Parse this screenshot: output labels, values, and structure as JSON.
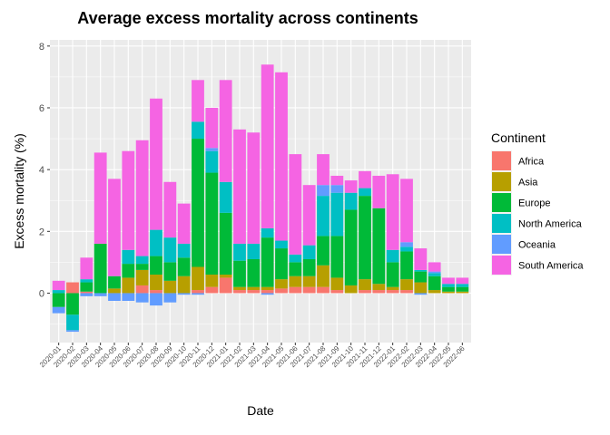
{
  "chart_data": {
    "type": "bar",
    "stacked": true,
    "title": "Average excess mortality across continents",
    "xlabel": "Date",
    "ylabel": "Excess mortality (%)",
    "ylim": [
      -1.6,
      8.2
    ],
    "yticks": [
      0,
      2,
      4,
      6,
      8
    ],
    "grid": true,
    "legend_title": "Continent",
    "legend_position": "right",
    "categories": [
      "2020-01",
      "2020-02",
      "2020-03",
      "2020-04",
      "2020-05",
      "2020-06",
      "2020-07",
      "2020-08",
      "2020-09",
      "2020-10",
      "2020-11",
      "2020-12",
      "2021-01",
      "2021-02",
      "2021-03",
      "2021-04",
      "2021-05",
      "2021-06",
      "2021-07",
      "2021-08",
      "2021-09",
      "2021-10",
      "2021-11",
      "2021-12",
      "2022-01",
      "2022-02",
      "2022-03",
      "2022-04",
      "2022-05",
      "2022-06"
    ],
    "series": [
      {
        "name": "Africa",
        "color": "#F8766D",
        "values": [
          0.0,
          0.35,
          0.05,
          0.0,
          0.0,
          0.0,
          0.25,
          0.1,
          0.0,
          0.0,
          0.1,
          0.2,
          0.5,
          0.1,
          0.1,
          0.1,
          0.15,
          0.2,
          0.2,
          0.2,
          0.1,
          0.0,
          0.1,
          0.1,
          0.1,
          0.1,
          0.0,
          0.0,
          0.0,
          0.0
        ]
      },
      {
        "name": "Asia",
        "color": "#B79F00",
        "values": [
          0.0,
          0.0,
          0.0,
          0.0,
          0.15,
          0.5,
          0.5,
          0.5,
          0.4,
          0.55,
          0.75,
          0.4,
          0.1,
          0.1,
          0.1,
          0.1,
          0.3,
          0.35,
          0.35,
          0.7,
          0.4,
          0.25,
          0.35,
          0.2,
          0.1,
          0.35,
          0.35,
          0.1,
          0.05,
          0.05
        ]
      },
      {
        "name": "Europe",
        "color": "#00BA38",
        "values": [
          -0.45,
          -0.7,
          0.3,
          1.6,
          0.4,
          0.45,
          0.2,
          0.6,
          0.6,
          0.6,
          4.15,
          3.3,
          2.0,
          0.85,
          0.9,
          1.6,
          1.0,
          0.45,
          0.55,
          0.95,
          1.35,
          2.45,
          2.7,
          2.45,
          0.8,
          0.9,
          0.35,
          0.45,
          0.15,
          0.15
        ]
      },
      {
        "name": "North America",
        "color": "#00BFC4",
        "values": [
          0.1,
          -0.5,
          0.1,
          0.0,
          0.0,
          0.45,
          0.25,
          0.85,
          0.8,
          0.45,
          0.55,
          0.7,
          1.0,
          0.55,
          0.5,
          0.3,
          0.25,
          0.25,
          0.45,
          1.3,
          1.4,
          0.55,
          0.25,
          0.0,
          0.4,
          0.15,
          0.05,
          0.1,
          0.1,
          0.1
        ]
      },
      {
        "name": "Oceania",
        "color": "#619CFF",
        "values": [
          -0.2,
          -0.05,
          -0.1,
          -0.1,
          -0.25,
          -0.25,
          -0.3,
          -0.4,
          -0.3,
          -0.05,
          -0.05,
          0.1,
          0.0,
          0.0,
          0.0,
          -0.05,
          0.0,
          0.0,
          0.0,
          0.35,
          0.25,
          0.0,
          0.0,
          0.0,
          0.0,
          0.15,
          -0.05,
          0.05,
          0.0,
          0.0
        ]
      },
      {
        "name": "South America",
        "color": "#F564E3",
        "values": [
          0.3,
          0.0,
          0.7,
          2.95,
          3.15,
          3.2,
          3.75,
          4.25,
          1.8,
          1.3,
          1.35,
          1.3,
          3.3,
          3.7,
          3.6,
          5.3,
          5.45,
          3.25,
          1.95,
          1.0,
          0.3,
          0.4,
          0.55,
          1.05,
          2.45,
          2.05,
          0.7,
          0.3,
          0.2,
          0.2
        ]
      }
    ]
  }
}
